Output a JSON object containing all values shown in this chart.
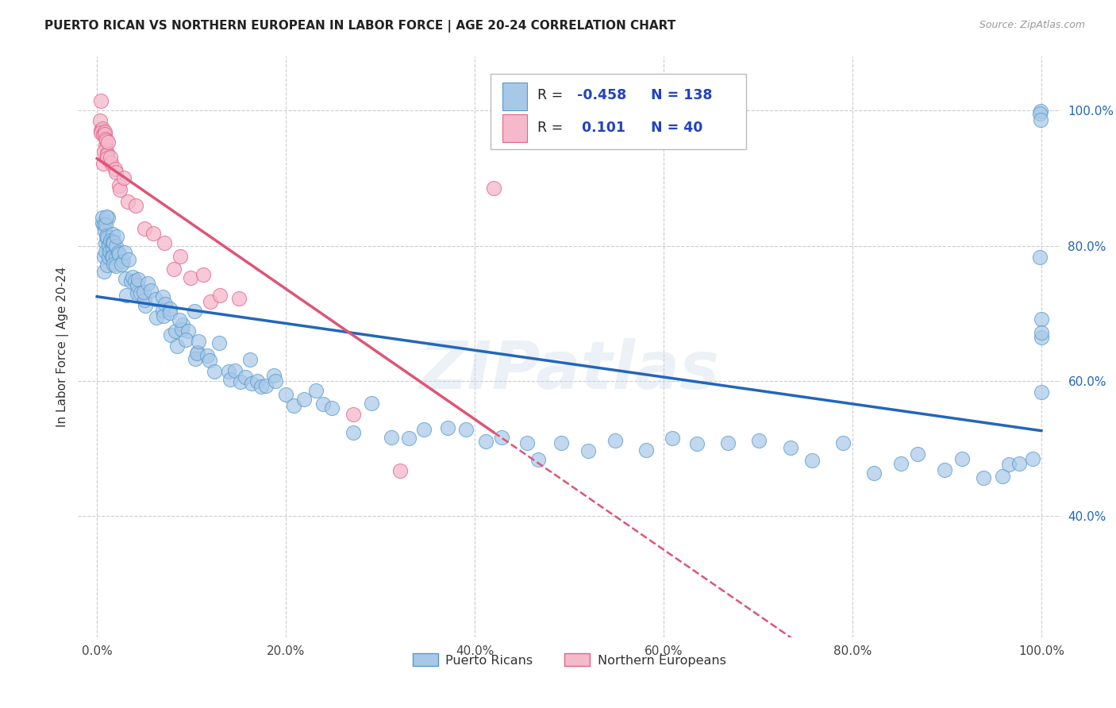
{
  "title": "PUERTO RICAN VS NORTHERN EUROPEAN IN LABOR FORCE | AGE 20-24 CORRELATION CHART",
  "source": "Source: ZipAtlas.com",
  "ylabel": "In Labor Force | Age 20-24",
  "xlim": [
    -0.02,
    1.02
  ],
  "ylim": [
    0.22,
    1.08
  ],
  "xticks": [
    0.0,
    0.2,
    0.4,
    0.6,
    0.8,
    1.0
  ],
  "yticks": [
    0.4,
    0.6,
    0.8,
    1.0
  ],
  "xtick_labels": [
    "0.0%",
    "20.0%",
    "40.0%",
    "60.0%",
    "80.0%",
    "100.0%"
  ],
  "ytick_labels": [
    "40.0%",
    "60.0%",
    "80.0%",
    "100.0%"
  ],
  "blue_R": -0.458,
  "blue_N": 138,
  "pink_R": 0.101,
  "pink_N": 40,
  "blue_color": "#a8c8e8",
  "pink_color": "#f5b8cc",
  "blue_edge": "#5599cc",
  "pink_edge": "#e06688",
  "blue_line": "#2266bb",
  "pink_line": "#dd5577",
  "watermark": "ZIPatlas",
  "bg": "#ffffff",
  "grid_color": "#cccccc",
  "ytick_color": "#2266bb",
  "legend_val_color": "#2244bb",
  "blue_x": [
    0.005,
    0.006,
    0.007,
    0.008,
    0.008,
    0.009,
    0.009,
    0.01,
    0.01,
    0.01,
    0.01,
    0.011,
    0.011,
    0.011,
    0.012,
    0.012,
    0.012,
    0.013,
    0.013,
    0.013,
    0.014,
    0.014,
    0.015,
    0.015,
    0.015,
    0.016,
    0.016,
    0.017,
    0.017,
    0.018,
    0.018,
    0.019,
    0.02,
    0.02,
    0.021,
    0.022,
    0.023,
    0.025,
    0.026,
    0.028,
    0.03,
    0.031,
    0.033,
    0.035,
    0.037,
    0.038,
    0.04,
    0.042,
    0.044,
    0.046,
    0.048,
    0.05,
    0.052,
    0.055,
    0.058,
    0.06,
    0.063,
    0.065,
    0.068,
    0.07,
    0.073,
    0.075,
    0.078,
    0.08,
    0.082,
    0.085,
    0.088,
    0.09,
    0.093,
    0.095,
    0.098,
    0.1,
    0.103,
    0.105,
    0.108,
    0.11,
    0.115,
    0.12,
    0.125,
    0.13,
    0.135,
    0.14,
    0.145,
    0.15,
    0.155,
    0.16,
    0.165,
    0.17,
    0.175,
    0.18,
    0.185,
    0.19,
    0.2,
    0.21,
    0.22,
    0.23,
    0.24,
    0.25,
    0.27,
    0.29,
    0.31,
    0.33,
    0.35,
    0.37,
    0.39,
    0.41,
    0.43,
    0.45,
    0.47,
    0.49,
    0.52,
    0.55,
    0.58,
    0.61,
    0.64,
    0.67,
    0.7,
    0.73,
    0.76,
    0.79,
    0.82,
    0.85,
    0.87,
    0.9,
    0.92,
    0.94,
    0.96,
    0.97,
    0.98,
    0.99,
    1.0,
    1.0,
    1.0,
    1.0,
    1.0,
    1.0,
    1.0,
    1.0
  ],
  "blue_y": [
    0.82,
    0.815,
    0.81,
    0.805,
    0.8,
    0.795,
    0.79,
    0.815,
    0.81,
    0.805,
    0.8,
    0.795,
    0.79,
    0.785,
    0.81,
    0.805,
    0.8,
    0.808,
    0.803,
    0.797,
    0.806,
    0.8,
    0.803,
    0.798,
    0.792,
    0.8,
    0.794,
    0.798,
    0.792,
    0.795,
    0.788,
    0.792,
    0.79,
    0.783,
    0.788,
    0.782,
    0.779,
    0.775,
    0.773,
    0.77,
    0.768,
    0.766,
    0.762,
    0.759,
    0.756,
    0.752,
    0.749,
    0.745,
    0.742,
    0.738,
    0.734,
    0.73,
    0.727,
    0.723,
    0.719,
    0.716,
    0.712,
    0.708,
    0.704,
    0.7,
    0.697,
    0.695,
    0.692,
    0.688,
    0.685,
    0.682,
    0.679,
    0.676,
    0.673,
    0.67,
    0.667,
    0.665,
    0.66,
    0.656,
    0.652,
    0.649,
    0.643,
    0.638,
    0.634,
    0.629,
    0.625,
    0.621,
    0.617,
    0.613,
    0.61,
    0.607,
    0.604,
    0.601,
    0.598,
    0.596,
    0.593,
    0.59,
    0.586,
    0.58,
    0.575,
    0.57,
    0.566,
    0.562,
    0.556,
    0.549,
    0.543,
    0.538,
    0.534,
    0.53,
    0.527,
    0.524,
    0.522,
    0.519,
    0.516,
    0.513,
    0.509,
    0.504,
    0.5,
    0.497,
    0.494,
    0.492,
    0.49,
    0.488,
    0.485,
    0.483,
    0.48,
    0.478,
    0.476,
    0.473,
    0.471,
    0.47,
    0.468,
    0.466,
    0.464,
    0.463,
    1.0,
    0.99,
    0.975,
    0.775,
    0.715,
    0.675,
    0.645,
    0.605
  ],
  "pink_x": [
    0.003,
    0.004,
    0.005,
    0.005,
    0.006,
    0.006,
    0.007,
    0.007,
    0.008,
    0.008,
    0.009,
    0.009,
    0.01,
    0.01,
    0.011,
    0.011,
    0.012,
    0.013,
    0.014,
    0.015,
    0.018,
    0.02,
    0.023,
    0.025,
    0.028,
    0.03,
    0.04,
    0.05,
    0.06,
    0.07,
    0.08,
    0.09,
    0.1,
    0.11,
    0.12,
    0.13,
    0.15,
    0.27,
    0.32,
    0.42
  ],
  "pink_y": [
    0.99,
    0.985,
    0.982,
    0.978,
    0.975,
    0.972,
    0.968,
    0.965,
    0.961,
    0.958,
    0.954,
    0.951,
    0.947,
    0.944,
    0.942,
    0.938,
    0.936,
    0.931,
    0.927,
    0.923,
    0.914,
    0.908,
    0.9,
    0.893,
    0.885,
    0.879,
    0.856,
    0.84,
    0.821,
    0.804,
    0.785,
    0.77,
    0.755,
    0.742,
    0.728,
    0.715,
    0.694,
    0.548,
    0.475,
    0.88
  ]
}
